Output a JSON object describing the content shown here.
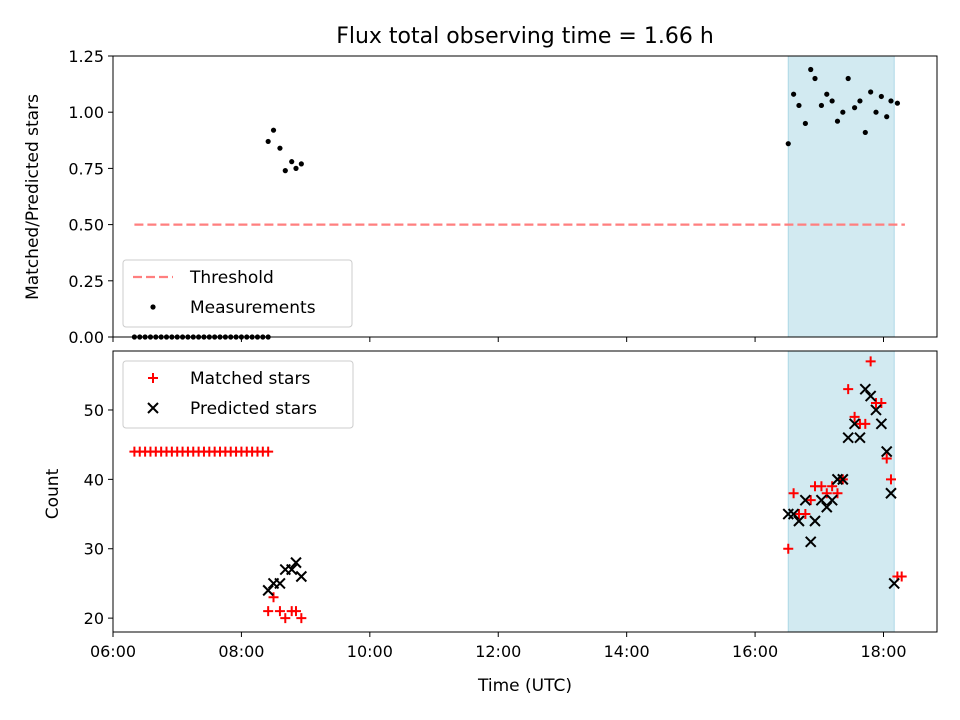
{
  "chart_data": [
    {
      "type": "scatter",
      "title": "Flux total observing time = 1.66 h",
      "xlabel": "",
      "ylabel": "Matched/Predicted stars",
      "x_unit": "time (UTC)",
      "xlim": [
        "06:00",
        "18:50"
      ],
      "ylim": [
        0,
        1.25
      ],
      "yticks": [
        0.0,
        0.25,
        0.5,
        0.75,
        1.0,
        1.25
      ],
      "ytick_labels": [
        "0.00",
        "0.25",
        "0.50",
        "0.75",
        "1.00",
        "1.25"
      ],
      "shaded_interval": {
        "from": "16:31",
        "to": "18:10",
        "color": "#add8e6"
      },
      "legend": {
        "placement": "lower-left",
        "entries": [
          "Threshold",
          "Measurements"
        ]
      },
      "series": [
        {
          "name": "Threshold",
          "style": "dashed-line",
          "color": "#ff7f7f",
          "x": [
            "06:20",
            "18:20"
          ],
          "y": [
            0.5,
            0.5
          ]
        },
        {
          "name": "Measurements",
          "style": "dot",
          "color": "#000000",
          "x": [
            "06:20",
            "06:25",
            "06:30",
            "06:35",
            "06:40",
            "06:45",
            "06:50",
            "06:55",
            "07:00",
            "07:05",
            "07:10",
            "07:15",
            "07:20",
            "07:25",
            "07:30",
            "07:35",
            "07:40",
            "07:45",
            "07:50",
            "07:55",
            "08:00",
            "08:05",
            "08:10",
            "08:15",
            "08:20",
            "08:25",
            "08:25",
            "08:30",
            "08:36",
            "08:41",
            "08:47",
            "08:51",
            "08:56",
            "16:31",
            "16:36",
            "16:41",
            "16:47",
            "16:52",
            "16:56",
            "17:02",
            "17:07",
            "17:12",
            "17:17",
            "17:22",
            "17:27",
            "17:33",
            "17:38",
            "17:43",
            "17:48",
            "17:53",
            "17:58",
            "18:03",
            "18:07",
            "18:13"
          ],
          "y": [
            0,
            0,
            0,
            0,
            0,
            0,
            0,
            0,
            0,
            0,
            0,
            0,
            0,
            0,
            0,
            0,
            0,
            0,
            0,
            0,
            0,
            0,
            0,
            0,
            0,
            0,
            0.87,
            0.92,
            0.84,
            0.74,
            0.78,
            0.75,
            0.77,
            0.86,
            1.08,
            1.03,
            0.95,
            1.19,
            1.15,
            1.03,
            1.08,
            1.05,
            0.96,
            1.0,
            1.15,
            1.02,
            1.05,
            0.91,
            1.09,
            1.0,
            1.07,
            0.98,
            1.05,
            1.04
          ]
        }
      ]
    },
    {
      "type": "scatter",
      "title": "",
      "xlabel": "Time (UTC)",
      "ylabel": "Count",
      "x_unit": "time (UTC)",
      "xlim": [
        "06:00",
        "18:50"
      ],
      "ylim": [
        18,
        58.5
      ],
      "xticks": [
        "06:00",
        "08:00",
        "10:00",
        "12:00",
        "14:00",
        "16:00",
        "18:00"
      ],
      "yticks": [
        20,
        30,
        40,
        50
      ],
      "shaded_interval": {
        "from": "16:31",
        "to": "18:10",
        "color": "#add8e6"
      },
      "legend": {
        "placement": "top-left",
        "entries": [
          "Matched stars",
          "Predicted stars"
        ]
      },
      "series": [
        {
          "name": "Matched stars",
          "marker": "plus",
          "color": "#ff0000",
          "x": [
            "06:20",
            "06:25",
            "06:30",
            "06:35",
            "06:40",
            "06:45",
            "06:50",
            "06:55",
            "07:00",
            "07:05",
            "07:10",
            "07:15",
            "07:20",
            "07:25",
            "07:30",
            "07:35",
            "07:40",
            "07:45",
            "07:50",
            "07:55",
            "08:00",
            "08:05",
            "08:10",
            "08:15",
            "08:20",
            "08:25",
            "08:25",
            "08:30",
            "08:36",
            "08:41",
            "08:47",
            "08:51",
            "08:56",
            "16:31",
            "16:36",
            "16:41",
            "16:47",
            "16:52",
            "16:56",
            "17:02",
            "17:07",
            "17:12",
            "17:17",
            "17:22",
            "17:27",
            "17:33",
            "17:38",
            "17:43",
            "17:48",
            "17:53",
            "17:58",
            "18:03",
            "18:07",
            "18:13",
            "18:17"
          ],
          "y": [
            44,
            44,
            44,
            44,
            44,
            44,
            44,
            44,
            44,
            44,
            44,
            44,
            44,
            44,
            44,
            44,
            44,
            44,
            44,
            44,
            44,
            44,
            44,
            44,
            44,
            44,
            21,
            23,
            21,
            20,
            21,
            21,
            20,
            30,
            38,
            35,
            35,
            37,
            39,
            39,
            38,
            39,
            38,
            40,
            53,
            49,
            48,
            48,
            57,
            51,
            51,
            43,
            40,
            26,
            26
          ]
        },
        {
          "name": "Predicted stars",
          "marker": "x",
          "color": "#000000",
          "x": [
            "08:25",
            "08:30",
            "08:36",
            "08:41",
            "08:47",
            "08:51",
            "08:56",
            "16:31",
            "16:36",
            "16:41",
            "16:47",
            "16:52",
            "16:56",
            "17:02",
            "17:07",
            "17:12",
            "17:17",
            "17:22",
            "17:27",
            "17:33",
            "17:38",
            "17:43",
            "17:48",
            "17:53",
            "17:58",
            "18:03",
            "18:07",
            "18:10"
          ],
          "y": [
            24,
            25,
            25,
            27,
            27,
            28,
            26,
            35,
            35,
            34,
            37,
            31,
            34,
            37,
            36,
            37,
            40,
            40,
            46,
            48,
            46,
            53,
            52,
            50,
            48,
            44,
            38,
            25
          ]
        }
      ]
    }
  ]
}
